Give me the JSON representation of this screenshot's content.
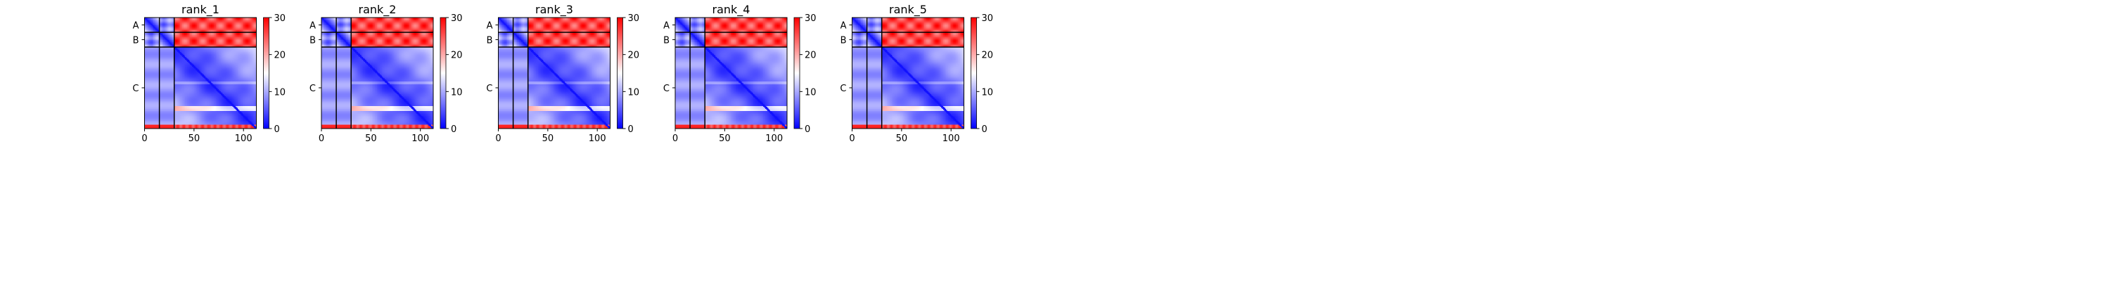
{
  "chart_data": [
    {
      "type": "heatmap",
      "title": "rank_1",
      "chains": [
        {
          "label": "A",
          "start": 0,
          "end": 15
        },
        {
          "label": "B",
          "start": 15,
          "end": 30
        },
        {
          "label": "C",
          "start": 30,
          "end": 113
        }
      ],
      "xlim": [
        0,
        113
      ],
      "xticks": [
        0,
        50,
        100
      ],
      "colorbar": {
        "min": 0,
        "max": 30,
        "ticks": [
          0,
          10,
          20,
          30
        ],
        "cmap": "bwr"
      }
    },
    {
      "type": "heatmap",
      "title": "rank_2",
      "chains": [
        {
          "label": "A",
          "start": 0,
          "end": 15
        },
        {
          "label": "B",
          "start": 15,
          "end": 30
        },
        {
          "label": "C",
          "start": 30,
          "end": 113
        }
      ],
      "xlim": [
        0,
        113
      ],
      "xticks": [
        0,
        50,
        100
      ],
      "colorbar": {
        "min": 0,
        "max": 30,
        "ticks": [
          0,
          10,
          20,
          30
        ],
        "cmap": "bwr"
      }
    },
    {
      "type": "heatmap",
      "title": "rank_3",
      "chains": [
        {
          "label": "A",
          "start": 0,
          "end": 15
        },
        {
          "label": "B",
          "start": 15,
          "end": 30
        },
        {
          "label": "C",
          "start": 30,
          "end": 113
        }
      ],
      "xlim": [
        0,
        113
      ],
      "xticks": [
        0,
        50,
        100
      ],
      "colorbar": {
        "min": 0,
        "max": 30,
        "ticks": [
          0,
          10,
          20,
          30
        ],
        "cmap": "bwr"
      }
    },
    {
      "type": "heatmap",
      "title": "rank_4",
      "chains": [
        {
          "label": "A",
          "start": 0,
          "end": 15
        },
        {
          "label": "B",
          "start": 15,
          "end": 30
        },
        {
          "label": "C",
          "start": 30,
          "end": 113
        }
      ],
      "xlim": [
        0,
        113
      ],
      "xticks": [
        0,
        50,
        100
      ],
      "colorbar": {
        "min": 0,
        "max": 30,
        "ticks": [
          0,
          10,
          20,
          30
        ],
        "cmap": "bwr"
      }
    },
    {
      "type": "heatmap",
      "title": "rank_5",
      "chains": [
        {
          "label": "A",
          "start": 0,
          "end": 15
        },
        {
          "label": "B",
          "start": 15,
          "end": 30
        },
        {
          "label": "C",
          "start": 30,
          "end": 113
        }
      ],
      "xlim": [
        0,
        113
      ],
      "xticks": [
        0,
        50,
        100
      ],
      "colorbar": {
        "min": 0,
        "max": 30,
        "ticks": [
          0,
          10,
          20,
          30
        ],
        "cmap": "bwr"
      }
    }
  ]
}
